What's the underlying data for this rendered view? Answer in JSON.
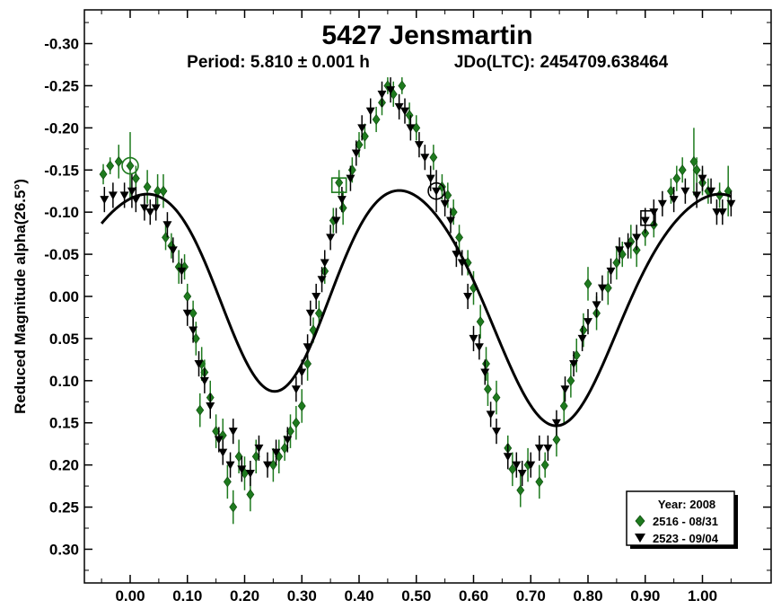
{
  "chart_data": {
    "type": "scatter",
    "title": "5427 Jensmartin",
    "subtitle_period": "Period: 5.810 ± 0.001 h",
    "subtitle_epoch": "JDo(LTC): 2454709.638464",
    "ylabel": "Reduced Magnitude alpha(26.5°)",
    "xlabel": "",
    "xlim": [
      -0.08,
      1.12
    ],
    "ylim": [
      0.34,
      -0.34
    ],
    "y_inverted": true,
    "x_ticks": [
      "0.00",
      "0.10",
      "0.20",
      "0.30",
      "0.40",
      "0.50",
      "0.60",
      "0.70",
      "0.80",
      "0.90",
      "1.00"
    ],
    "y_ticks": [
      "-0.30",
      "-0.25",
      "-0.20",
      "-0.15",
      "-0.10",
      "-0.05",
      "0.00",
      "0.05",
      "0.10",
      "0.15",
      "0.20",
      "0.25",
      "0.30"
    ],
    "grid": false,
    "legend": {
      "placement": "bottom-right",
      "title": "Year: 2008",
      "entries": [
        {
          "label": "2516 - 08/31",
          "marker": "diamond",
          "color": "#1e7a1e"
        },
        {
          "label": "2523 - 09/04",
          "marker": "triangle-down",
          "color": "#000000"
        }
      ]
    },
    "colors": {
      "series_2516": "#1e7a1e",
      "series_2523": "#000000",
      "fit": "#000000"
    },
    "fit_curve": {
      "description_in_chart": "solid line",
      "mean": -0.005,
      "harmonics": [
        {
          "n": 1,
          "a": -0.00313,
          "b": -0.03086
        },
        {
          "n": 2,
          "a": -0.12513,
          "b": 0.00312
        },
        {
          "n": 3,
          "a": 0.00462,
          "b": -0.01062
        },
        {
          "n": 4,
          "a": 0.01275,
          "b": 0.00023
        }
      ]
    },
    "series": [
      {
        "name": "2516 - 08/31",
        "marker": "diamond",
        "points": [
          {
            "x": -0.047,
            "y": -0.145,
            "e": 0.012
          },
          {
            "x": -0.035,
            "y": -0.155,
            "e": 0.01
          },
          {
            "x": -0.02,
            "y": -0.16,
            "e": 0.02
          },
          {
            "x": 0.0,
            "y": -0.155,
            "e": 0.04
          },
          {
            "x": 0.01,
            "y": -0.14,
            "e": 0.015
          },
          {
            "x": 0.03,
            "y": -0.13,
            "e": 0.02
          },
          {
            "x": 0.048,
            "y": -0.125,
            "e": 0.02
          },
          {
            "x": 0.058,
            "y": -0.125,
            "e": 0.02
          },
          {
            "x": 0.062,
            "y": -0.07,
            "e": 0.015
          },
          {
            "x": 0.072,
            "y": -0.06,
            "e": 0.015
          },
          {
            "x": 0.085,
            "y": -0.035,
            "e": 0.02
          },
          {
            "x": 0.095,
            "y": -0.035,
            "e": 0.015
          },
          {
            "x": 0.1,
            "y": 0.0,
            "e": 0.015
          },
          {
            "x": 0.11,
            "y": 0.02,
            "e": 0.015
          },
          {
            "x": 0.115,
            "y": 0.05,
            "e": 0.02
          },
          {
            "x": 0.125,
            "y": 0.08,
            "e": 0.02
          },
          {
            "x": 0.13,
            "y": 0.09,
            "e": 0.015
          },
          {
            "x": 0.14,
            "y": 0.12,
            "e": 0.02
          },
          {
            "x": 0.122,
            "y": 0.135,
            "e": 0.02
          },
          {
            "x": 0.15,
            "y": 0.16,
            "e": 0.02
          },
          {
            "x": 0.162,
            "y": 0.165,
            "e": 0.02
          },
          {
            "x": 0.17,
            "y": 0.22,
            "e": 0.02
          },
          {
            "x": 0.18,
            "y": 0.25,
            "e": 0.02
          },
          {
            "x": 0.19,
            "y": 0.19,
            "e": 0.02
          },
          {
            "x": 0.2,
            "y": 0.21,
            "e": 0.02
          },
          {
            "x": 0.21,
            "y": 0.235,
            "e": 0.02
          },
          {
            "x": 0.22,
            "y": 0.19,
            "e": 0.02
          },
          {
            "x": 0.25,
            "y": 0.2,
            "e": 0.02
          },
          {
            "x": 0.26,
            "y": 0.19,
            "e": 0.02
          },
          {
            "x": 0.27,
            "y": 0.18,
            "e": 0.015
          },
          {
            "x": 0.28,
            "y": 0.16,
            "e": 0.02
          },
          {
            "x": 0.29,
            "y": 0.15,
            "e": 0.02
          },
          {
            "x": 0.3,
            "y": 0.13,
            "e": 0.02
          },
          {
            "x": 0.31,
            "y": 0.08,
            "e": 0.02
          },
          {
            "x": 0.32,
            "y": 0.04,
            "e": 0.015
          },
          {
            "x": 0.33,
            "y": 0.02,
            "e": 0.015
          },
          {
            "x": 0.34,
            "y": -0.03,
            "e": 0.015
          },
          {
            "x": 0.355,
            "y": -0.09,
            "e": 0.015
          },
          {
            "x": 0.365,
            "y": -0.135,
            "e": 0.015
          },
          {
            "x": 0.372,
            "y": -0.105,
            "e": 0.02
          },
          {
            "x": 0.388,
            "y": -0.15,
            "e": 0.015
          },
          {
            "x": 0.4,
            "y": -0.18,
            "e": 0.015
          },
          {
            "x": 0.41,
            "y": -0.19,
            "e": 0.015
          },
          {
            "x": 0.43,
            "y": -0.21,
            "e": 0.015
          },
          {
            "x": 0.44,
            "y": -0.23,
            "e": 0.015
          },
          {
            "x": 0.45,
            "y": -0.25,
            "e": 0.01
          },
          {
            "x": 0.46,
            "y": -0.24,
            "e": 0.015
          },
          {
            "x": 0.475,
            "y": -0.25,
            "e": 0.01
          },
          {
            "x": 0.488,
            "y": -0.215,
            "e": 0.015
          },
          {
            "x": 0.5,
            "y": -0.2,
            "e": 0.015
          },
          {
            "x": 0.53,
            "y": -0.165,
            "e": 0.015
          },
          {
            "x": 0.545,
            "y": -0.13,
            "e": 0.015
          },
          {
            "x": 0.555,
            "y": -0.12,
            "e": 0.015
          },
          {
            "x": 0.565,
            "y": -0.1,
            "e": 0.015
          },
          {
            "x": 0.575,
            "y": -0.07,
            "e": 0.015
          },
          {
            "x": 0.59,
            "y": -0.04,
            "e": 0.015
          },
          {
            "x": 0.6,
            "y": -0.01,
            "e": 0.02
          },
          {
            "x": 0.612,
            "y": 0.03,
            "e": 0.02
          },
          {
            "x": 0.622,
            "y": 0.08,
            "e": 0.02
          },
          {
            "x": 0.625,
            "y": 0.11,
            "e": 0.02
          },
          {
            "x": 0.64,
            "y": 0.12,
            "e": 0.02
          },
          {
            "x": 0.66,
            "y": 0.18,
            "e": 0.015
          },
          {
            "x": 0.668,
            "y": 0.205,
            "e": 0.02
          },
          {
            "x": 0.682,
            "y": 0.23,
            "e": 0.02
          },
          {
            "x": 0.695,
            "y": 0.2,
            "e": 0.02
          },
          {
            "x": 0.715,
            "y": 0.22,
            "e": 0.02
          },
          {
            "x": 0.725,
            "y": 0.2,
            "e": 0.015
          },
          {
            "x": 0.745,
            "y": 0.17,
            "e": 0.02
          },
          {
            "x": 0.758,
            "y": 0.13,
            "e": 0.02
          },
          {
            "x": 0.77,
            "y": 0.1,
            "e": 0.02
          },
          {
            "x": 0.78,
            "y": 0.07,
            "e": 0.02
          },
          {
            "x": 0.792,
            "y": 0.04,
            "e": 0.02
          },
          {
            "x": 0.8,
            "y": -0.015,
            "e": 0.02
          },
          {
            "x": 0.815,
            "y": 0.02,
            "e": 0.02
          },
          {
            "x": 0.835,
            "y": -0.01,
            "e": 0.02
          },
          {
            "x": 0.85,
            "y": -0.04,
            "e": 0.02
          },
          {
            "x": 0.86,
            "y": -0.05,
            "e": 0.015
          },
          {
            "x": 0.875,
            "y": -0.065,
            "e": 0.02
          },
          {
            "x": 0.885,
            "y": -0.055,
            "e": 0.02
          },
          {
            "x": 0.9,
            "y": -0.075,
            "e": 0.015
          },
          {
            "x": 0.915,
            "y": -0.085,
            "e": 0.015
          },
          {
            "x": 0.945,
            "y": -0.125,
            "e": 0.015
          },
          {
            "x": 0.955,
            "y": -0.14,
            "e": 0.015
          },
          {
            "x": 0.965,
            "y": -0.15,
            "e": 0.015
          },
          {
            "x": 0.985,
            "y": -0.16,
            "e": 0.04
          },
          {
            "x": 0.99,
            "y": -0.15,
            "e": 0.015
          },
          {
            "x": 1.0,
            "y": -0.135,
            "e": 0.015
          },
          {
            "x": 1.01,
            "y": -0.125,
            "e": 0.015
          },
          {
            "x": 1.03,
            "y": -0.12,
            "e": 0.015
          },
          {
            "x": 1.045,
            "y": -0.125,
            "e": 0.03
          }
        ]
      },
      {
        "name": "2523 - 09/04",
        "marker": "triangle-down",
        "points": [
          {
            "x": -0.045,
            "y": -0.115,
            "e": 0.015
          },
          {
            "x": -0.03,
            "y": -0.12,
            "e": 0.015
          },
          {
            "x": -0.01,
            "y": -0.12,
            "e": 0.015
          },
          {
            "x": 0.003,
            "y": -0.125,
            "e": 0.02
          },
          {
            "x": 0.01,
            "y": -0.115,
            "e": 0.015
          },
          {
            "x": 0.025,
            "y": -0.105,
            "e": 0.015
          },
          {
            "x": 0.035,
            "y": -0.1,
            "e": 0.015
          },
          {
            "x": 0.045,
            "y": -0.105,
            "e": 0.015
          },
          {
            "x": 0.065,
            "y": -0.085,
            "e": 0.015
          },
          {
            "x": 0.075,
            "y": -0.055,
            "e": 0.015
          },
          {
            "x": 0.09,
            "y": -0.03,
            "e": 0.015
          },
          {
            "x": 0.1,
            "y": 0.02,
            "e": 0.015
          },
          {
            "x": 0.11,
            "y": 0.04,
            "e": 0.015
          },
          {
            "x": 0.12,
            "y": 0.08,
            "e": 0.015
          },
          {
            "x": 0.13,
            "y": 0.1,
            "e": 0.015
          },
          {
            "x": 0.14,
            "y": 0.13,
            "e": 0.015
          },
          {
            "x": 0.155,
            "y": 0.17,
            "e": 0.015
          },
          {
            "x": 0.162,
            "y": 0.185,
            "e": 0.015
          },
          {
            "x": 0.175,
            "y": 0.2,
            "e": 0.015
          },
          {
            "x": 0.18,
            "y": 0.16,
            "e": 0.015
          },
          {
            "x": 0.195,
            "y": 0.205,
            "e": 0.015
          },
          {
            "x": 0.21,
            "y": 0.21,
            "e": 0.015
          },
          {
            "x": 0.225,
            "y": 0.18,
            "e": 0.015
          },
          {
            "x": 0.24,
            "y": 0.2,
            "e": 0.015
          },
          {
            "x": 0.255,
            "y": 0.185,
            "e": 0.015
          },
          {
            "x": 0.275,
            "y": 0.17,
            "e": 0.015
          },
          {
            "x": 0.29,
            "y": 0.11,
            "e": 0.015
          },
          {
            "x": 0.3,
            "y": 0.09,
            "e": 0.015
          },
          {
            "x": 0.31,
            "y": 0.06,
            "e": 0.015
          },
          {
            "x": 0.315,
            "y": 0.02,
            "e": 0.015
          },
          {
            "x": 0.325,
            "y": 0.0,
            "e": 0.015
          },
          {
            "x": 0.335,
            "y": -0.02,
            "e": 0.015
          },
          {
            "x": 0.34,
            "y": -0.04,
            "e": 0.015
          },
          {
            "x": 0.35,
            "y": -0.07,
            "e": 0.015
          },
          {
            "x": 0.36,
            "y": -0.09,
            "e": 0.015
          },
          {
            "x": 0.37,
            "y": -0.115,
            "e": 0.015
          },
          {
            "x": 0.385,
            "y": -0.14,
            "e": 0.015
          },
          {
            "x": 0.395,
            "y": -0.17,
            "e": 0.015
          },
          {
            "x": 0.405,
            "y": -0.2,
            "e": 0.015
          },
          {
            "x": 0.42,
            "y": -0.22,
            "e": 0.015
          },
          {
            "x": 0.44,
            "y": -0.24,
            "e": 0.015
          },
          {
            "x": 0.455,
            "y": -0.245,
            "e": 0.015
          },
          {
            "x": 0.47,
            "y": -0.225,
            "e": 0.015
          },
          {
            "x": 0.48,
            "y": -0.22,
            "e": 0.015
          },
          {
            "x": 0.49,
            "y": -0.2,
            "e": 0.015
          },
          {
            "x": 0.505,
            "y": -0.18,
            "e": 0.015
          },
          {
            "x": 0.515,
            "y": -0.165,
            "e": 0.015
          },
          {
            "x": 0.525,
            "y": -0.14,
            "e": 0.015
          },
          {
            "x": 0.535,
            "y": -0.125,
            "e": 0.025
          },
          {
            "x": 0.55,
            "y": -0.11,
            "e": 0.015
          },
          {
            "x": 0.56,
            "y": -0.09,
            "e": 0.015
          },
          {
            "x": 0.57,
            "y": -0.05,
            "e": 0.015
          },
          {
            "x": 0.58,
            "y": -0.04,
            "e": 0.015
          },
          {
            "x": 0.59,
            "y": 0.0,
            "e": 0.015
          },
          {
            "x": 0.6,
            "y": 0.05,
            "e": 0.015
          },
          {
            "x": 0.61,
            "y": 0.06,
            "e": 0.015
          },
          {
            "x": 0.62,
            "y": 0.09,
            "e": 0.015
          },
          {
            "x": 0.63,
            "y": 0.14,
            "e": 0.015
          },
          {
            "x": 0.64,
            "y": 0.16,
            "e": 0.015
          },
          {
            "x": 0.66,
            "y": 0.19,
            "e": 0.015
          },
          {
            "x": 0.675,
            "y": 0.2,
            "e": 0.015
          },
          {
            "x": 0.685,
            "y": 0.21,
            "e": 0.015
          },
          {
            "x": 0.7,
            "y": 0.2,
            "e": 0.015
          },
          {
            "x": 0.715,
            "y": 0.18,
            "e": 0.015
          },
          {
            "x": 0.73,
            "y": 0.18,
            "e": 0.015
          },
          {
            "x": 0.745,
            "y": 0.15,
            "e": 0.015
          },
          {
            "x": 0.76,
            "y": 0.11,
            "e": 0.015
          },
          {
            "x": 0.775,
            "y": 0.08,
            "e": 0.015
          },
          {
            "x": 0.79,
            "y": 0.05,
            "e": 0.015
          },
          {
            "x": 0.8,
            "y": 0.03,
            "e": 0.015
          },
          {
            "x": 0.815,
            "y": 0.01,
            "e": 0.015
          },
          {
            "x": 0.825,
            "y": -0.01,
            "e": 0.015
          },
          {
            "x": 0.84,
            "y": -0.03,
            "e": 0.015
          },
          {
            "x": 0.855,
            "y": -0.055,
            "e": 0.015
          },
          {
            "x": 0.87,
            "y": -0.06,
            "e": 0.015
          },
          {
            "x": 0.885,
            "y": -0.07,
            "e": 0.015
          },
          {
            "x": 0.9,
            "y": -0.09,
            "e": 0.015
          },
          {
            "x": 0.915,
            "y": -0.1,
            "e": 0.015
          },
          {
            "x": 0.93,
            "y": -0.11,
            "e": 0.015
          },
          {
            "x": 0.95,
            "y": -0.115,
            "e": 0.015
          },
          {
            "x": 0.97,
            "y": -0.125,
            "e": 0.015
          },
          {
            "x": 0.99,
            "y": -0.12,
            "e": 0.015
          },
          {
            "x": 1.0,
            "y": -0.14,
            "e": 0.015
          },
          {
            "x": 1.015,
            "y": -0.125,
            "e": 0.015
          },
          {
            "x": 1.025,
            "y": -0.1,
            "e": 0.015
          },
          {
            "x": 1.035,
            "y": -0.1,
            "e": 0.015
          },
          {
            "x": 1.05,
            "y": -0.11,
            "e": 0.015
          }
        ]
      }
    ],
    "highlighted_points": [
      {
        "x": 0.0,
        "y": -0.155,
        "marker": "circle-diamond",
        "color": "#1e7a1e"
      },
      {
        "x": 0.365,
        "y": -0.132,
        "marker": "square-diamond",
        "color": "#1e7a1e"
      },
      {
        "x": 0.535,
        "y": -0.125,
        "marker": "circle-triangle",
        "color": "#000000"
      },
      {
        "x": 0.905,
        "y": -0.093,
        "marker": "square-triangle",
        "color": "#000000"
      }
    ]
  }
}
